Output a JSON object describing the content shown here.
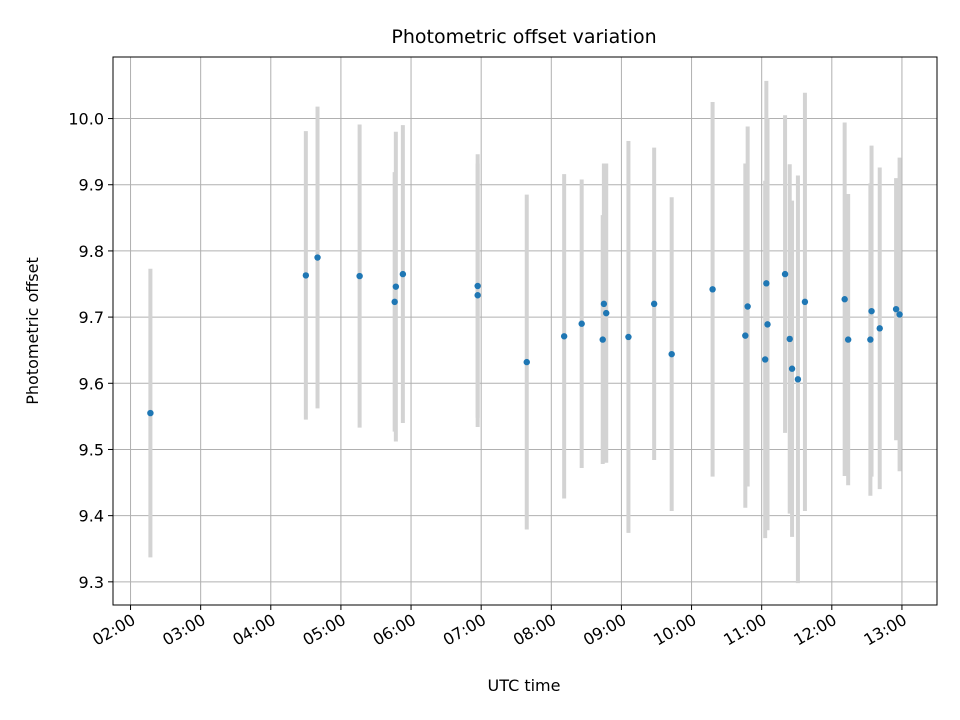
{
  "chart_data": {
    "type": "scatter",
    "title": "Photometric offset variation",
    "xlabel": "UTC time",
    "ylabel": "Photometric offset",
    "xlim": [
      "01:45",
      "13:30"
    ],
    "ylim": [
      9.265,
      10.093
    ],
    "x_ticks": [
      "02:00",
      "03:00",
      "04:00",
      "05:00",
      "06:00",
      "07:00",
      "08:00",
      "09:00",
      "10:00",
      "11:00",
      "12:00",
      "13:00"
    ],
    "y_ticks": [
      "9.3",
      "9.4",
      "9.5",
      "9.6",
      "9.7",
      "9.8",
      "9.9",
      "10.0"
    ],
    "grid": true,
    "marker_color": "#1f77b4",
    "errorbar_color": "#d3d3d3",
    "points": [
      {
        "time": "02:17",
        "value": 9.555,
        "err": 0.218
      },
      {
        "time": "04:30",
        "value": 9.763,
        "err": 0.218
      },
      {
        "time": "04:40",
        "value": 9.79,
        "err": 0.228
      },
      {
        "time": "05:16",
        "value": 9.762,
        "err": 0.229
      },
      {
        "time": "05:46",
        "value": 9.723,
        "err": 0.196
      },
      {
        "time": "05:47",
        "value": 9.746,
        "err": 0.234
      },
      {
        "time": "05:53",
        "value": 9.765,
        "err": 0.225
      },
      {
        "time": "06:57",
        "value": 9.733,
        "err": 0.199
      },
      {
        "time": "06:57",
        "value": 9.747,
        "err": 0.199
      },
      {
        "time": "07:39",
        "value": 9.632,
        "err": 0.253
      },
      {
        "time": "08:11",
        "value": 9.671,
        "err": 0.245
      },
      {
        "time": "08:26",
        "value": 9.69,
        "err": 0.218
      },
      {
        "time": "08:44",
        "value": 9.666,
        "err": 0.188
      },
      {
        "time": "08:45",
        "value": 9.72,
        "err": 0.212
      },
      {
        "time": "08:47",
        "value": 9.706,
        "err": 0.226
      },
      {
        "time": "09:06",
        "value": 9.67,
        "err": 0.296
      },
      {
        "time": "09:28",
        "value": 9.72,
        "err": 0.236
      },
      {
        "time": "09:43",
        "value": 9.644,
        "err": 0.237
      },
      {
        "time": "10:18",
        "value": 9.742,
        "err": 0.283
      },
      {
        "time": "10:46",
        "value": 9.672,
        "err": 0.26
      },
      {
        "time": "10:48",
        "value": 9.716,
        "err": 0.272
      },
      {
        "time": "11:03",
        "value": 9.636,
        "err": 0.27
      },
      {
        "time": "11:04",
        "value": 9.751,
        "err": 0.306
      },
      {
        "time": "11:05",
        "value": 9.689,
        "err": 0.311
      },
      {
        "time": "11:20",
        "value": 9.765,
        "err": 0.24
      },
      {
        "time": "11:24",
        "value": 9.667,
        "err": 0.264
      },
      {
        "time": "11:26",
        "value": 9.622,
        "err": 0.254
      },
      {
        "time": "11:31",
        "value": 9.606,
        "err": 0.308
      },
      {
        "time": "11:37",
        "value": 9.723,
        "err": 0.316
      },
      {
        "time": "12:11",
        "value": 9.727,
        "err": 0.267
      },
      {
        "time": "12:14",
        "value": 9.666,
        "err": 0.22
      },
      {
        "time": "12:33",
        "value": 9.666,
        "err": 0.236
      },
      {
        "time": "12:34",
        "value": 9.709,
        "err": 0.25
      },
      {
        "time": "12:41",
        "value": 9.683,
        "err": 0.243
      },
      {
        "time": "12:55",
        "value": 9.712,
        "err": 0.198
      },
      {
        "time": "12:58",
        "value": 9.704,
        "err": 0.237
      }
    ]
  }
}
